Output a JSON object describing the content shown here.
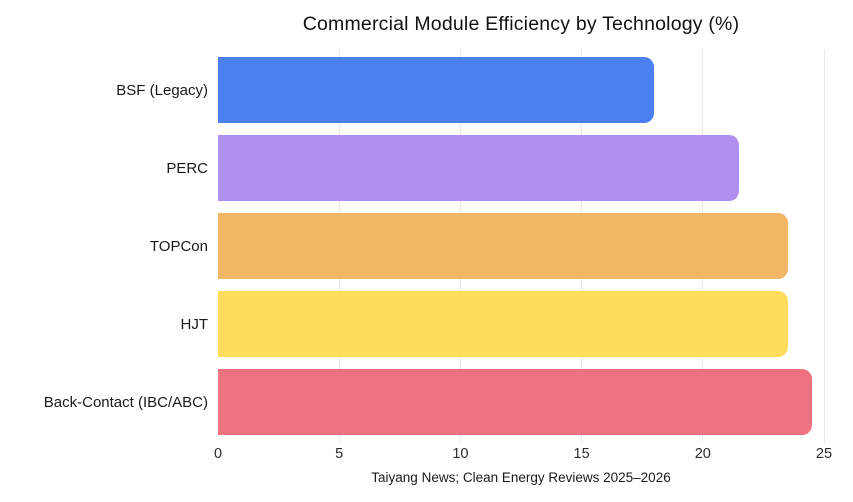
{
  "chart_data": {
    "type": "bar",
    "orientation": "horizontal",
    "title": "Commercial Module Efficiency by Technology (%)",
    "categories": [
      "BSF (Legacy)",
      "PERC",
      "TOPCon",
      "HJT",
      "Back-Contact (IBC/ABC)"
    ],
    "values": [
      18,
      21.5,
      23.5,
      23.5,
      24.5
    ],
    "bar_colors": [
      "#4a80f0",
      "#af8ff0",
      "#f2b765",
      "#ffdd5c",
      "#ee7280"
    ],
    "xlabel": "",
    "ylabel": "",
    "xlim": [
      0,
      25
    ],
    "x_ticks": [
      0,
      5,
      10,
      15,
      20,
      25
    ],
    "grid": true,
    "legend": false,
    "source_caption": "Taiyang News; Clean Energy Reviews 2025–2026"
  },
  "colors": {
    "background": "#ffffff",
    "gridline": "#e8e8e8",
    "text": "#1a1a1a"
  }
}
